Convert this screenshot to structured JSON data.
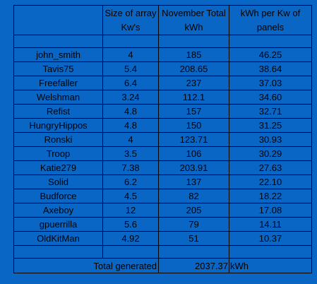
{
  "table": {
    "headers": [
      "",
      "Size of array Kw's",
      "November Total kWh",
      "kWh per Kw of panels"
    ],
    "rows": [
      [
        "john_smith",
        "4",
        "185",
        "46.25"
      ],
      [
        "Tavis75",
        "5.4",
        "208.65",
        "38.64"
      ],
      [
        "Freefaller",
        "6.4",
        "237",
        "37.03"
      ],
      [
        "Welshman",
        "3.24",
        "112.1",
        "34.60"
      ],
      [
        "Refist",
        "4.8",
        "157",
        "32.71"
      ],
      [
        "HungryHippos",
        "4.8",
        "150",
        "31.25"
      ],
      [
        "Ronski",
        "4",
        "123.71",
        "30.93"
      ],
      [
        "Troop",
        "3.5",
        "106",
        "30.29"
      ],
      [
        "Katie279",
        "7.38",
        "203.91",
        "27.63"
      ],
      [
        "Solid",
        "6.2",
        "137",
        "22.10"
      ],
      [
        "Budforce",
        "4.5",
        "82",
        "18.22"
      ],
      [
        "Axeboy",
        "12",
        "205",
        "17.08"
      ],
      [
        "gpuerrilla",
        "5.6",
        "79",
        "14.11"
      ],
      [
        "OldKitMan",
        "4.92",
        "51",
        "10.37"
      ]
    ],
    "total": {
      "label": "Total generated",
      "value": "2037.37",
      "unit": "kWh"
    }
  },
  "colors": {
    "background": "#0a66c4",
    "grid": "#000000"
  }
}
